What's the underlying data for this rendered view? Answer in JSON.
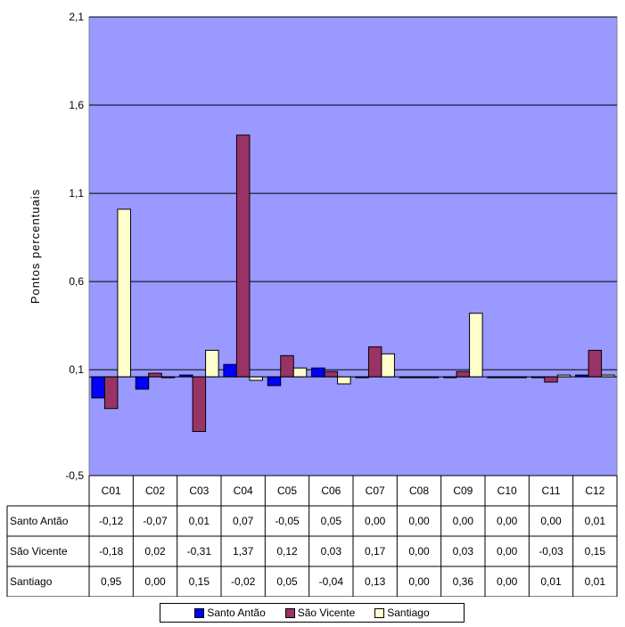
{
  "chart_data": {
    "type": "bar",
    "ylabel": "Pontos percentuais",
    "ylim": [
      -0.5,
      2.1
    ],
    "yticks": [
      "2,1",
      "1,6",
      "1,1",
      "0,6",
      "0,1",
      "-0,5"
    ],
    "categories": [
      "C01",
      "C02",
      "C03",
      "C04",
      "C05",
      "C06",
      "C07",
      "C08",
      "C09",
      "C10",
      "C11",
      "C12"
    ],
    "grid": true,
    "legend_position": "bottom",
    "series": [
      {
        "name": "Santo Antão",
        "color": "#0000FF",
        "values": [
          -0.12,
          -0.07,
          0.01,
          0.07,
          -0.05,
          0.05,
          0.0,
          0.0,
          0.0,
          0.0,
          0.0,
          0.01
        ],
        "labels": [
          "-0,12",
          "-0,07",
          "0,01",
          "0,07",
          "-0,05",
          "0,05",
          "0,00",
          "0,00",
          "0,00",
          "0,00",
          "0,00",
          "0,01"
        ]
      },
      {
        "name": "São Vicente",
        "color": "#993366",
        "values": [
          -0.18,
          0.02,
          -0.31,
          1.37,
          0.12,
          0.03,
          0.17,
          0.0,
          0.03,
          0.0,
          -0.03,
          0.15
        ],
        "labels": [
          "-0,18",
          "0,02",
          "-0,31",
          "1,37",
          "0,12",
          "0,03",
          "0,17",
          "0,00",
          "0,03",
          "0,00",
          "-0,03",
          "0,15"
        ]
      },
      {
        "name": "Santiago",
        "color": "#FFFFCC",
        "values": [
          0.95,
          0.0,
          0.15,
          -0.02,
          0.05,
          -0.04,
          0.13,
          0.0,
          0.36,
          0.0,
          0.01,
          0.01
        ],
        "labels": [
          "0,95",
          "0,00",
          "0,15",
          "-0,02",
          "0,05",
          "-0,04",
          "0,13",
          "0,00",
          "0,36",
          "0,00",
          "0,01",
          "0,01"
        ]
      }
    ],
    "plot_background": "#9999FF"
  }
}
